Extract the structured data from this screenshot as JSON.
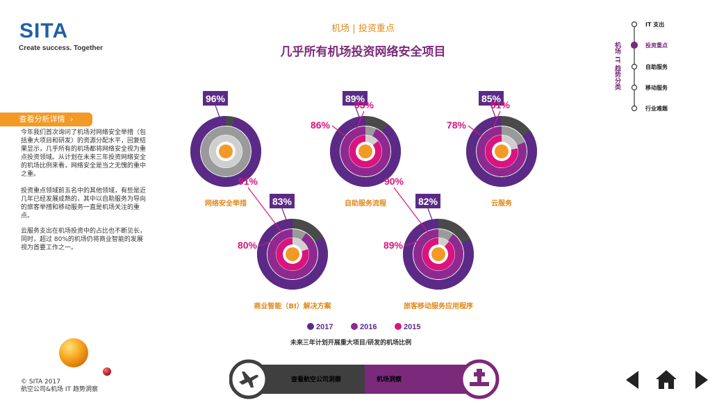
{
  "brand": {
    "logo": "SITA",
    "tagline": "Create success. Together"
  },
  "header": {
    "breadcrumb": "机场 | 投资重点",
    "title": "几乎所有机场投资网络安全项目"
  },
  "sidebar": {
    "details_button": "查看分析详情",
    "paragraphs": [
      "今年我们首次询问了机场对网络安全举措（包括重大项目和研发）的资源分配水平，回复结果显示，几乎所有的机场都将网络安全视为重点投资领域。从计划在未来三年投资网络安全的机场比例来看，网络安全是当之无愧的重中之重。",
      "投资重点领域前五名中的其他领域，有些是近几年已经发展成熟的，其中以自助服务为导向的旅客举措和移动服务一直是机场关注的重点。",
      "云服务支出在机场投资中的占比也不断见长，同时，超过 80%的机场仍将商业智能的发展视为首要工作之一。"
    ]
  },
  "right_rail": {
    "vertical_title": "机场 IT 趋势分类",
    "items": [
      "IT 支出",
      "投资重点",
      "自助服务",
      "移动服务",
      "行业难题"
    ],
    "active_index": 1
  },
  "colors": {
    "y2017": "#5b2a86",
    "y2016": "#8e2a8f",
    "y2015": "#d9147f",
    "gap": "#4a4a4a",
    "accent": "#f39a26"
  },
  "chart_data": {
    "type": "donut",
    "caption": "未来三年计划开展重大项目/研发的机场比例",
    "legend": [
      {
        "name": "2017",
        "color": "#5b2a86"
      },
      {
        "name": "2016",
        "color": "#8e2a8f"
      },
      {
        "name": "2015",
        "color": "#d9147f"
      }
    ],
    "charts": [
      {
        "category": "网络安全举措",
        "icon": "lock-icon",
        "values": {
          "2017": 96
        }
      },
      {
        "category": "自助服务流程",
        "icon": "self-service-phone-icon",
        "values": {
          "2017": 89,
          "2016": 93,
          "2015": 86
        }
      },
      {
        "category": "云服务",
        "icon": "cloud-icon",
        "values": {
          "2017": 85,
          "2016": 81,
          "2015": 78
        }
      },
      {
        "category": "商业智能（BI）解决方案",
        "icon": "brain-icon",
        "values": {
          "2017": 83,
          "2016": 91,
          "2015": 80
        }
      },
      {
        "category": "旅客移动服务应用程序",
        "icon": "mobile-phone-icon",
        "values": {
          "2017": 82,
          "2016": 90,
          "2015": 89
        }
      }
    ]
  },
  "footer": {
    "copyright": "© SITA 2017",
    "subtitle": "航空公司&机场 IT 趋势洞察",
    "nav_airline": "查看航空公司洞察",
    "nav_airport": "机场洞察"
  }
}
